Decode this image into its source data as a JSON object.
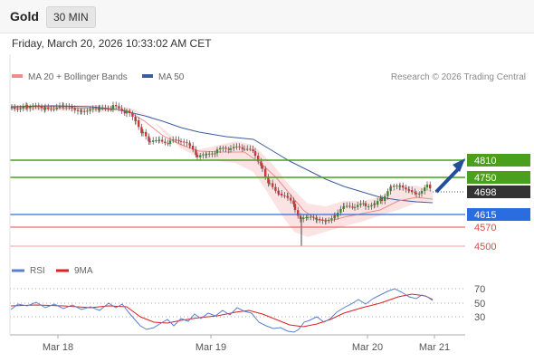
{
  "header": {
    "symbol": "Gold",
    "timeframe": "30 MIN"
  },
  "timestamp": "Friday, March 20, 2026 10:33:02 AM CET",
  "legend": {
    "ma20": {
      "label": "MA 20 + Bollinger Bands",
      "color": "#f08c8c"
    },
    "ma50": {
      "label": "MA 50",
      "color": "#3b5e9e"
    },
    "credit": "Research © 2026 Trading Central"
  },
  "price_levels": [
    {
      "value": 4810,
      "label": "4810",
      "kind": "resistance",
      "color": "#4aa01c"
    },
    {
      "value": 4750,
      "label": "4750",
      "kind": "resistance",
      "color": "#4aa01c"
    },
    {
      "value": 4698,
      "label": "4698",
      "kind": "last-price",
      "color": "#333333"
    },
    {
      "value": 4615,
      "label": "4615",
      "kind": "pivot",
      "color": "#2a6de0"
    },
    {
      "value": 4570,
      "label": "4570",
      "kind": "support",
      "color": "#e04848"
    },
    {
      "value": 4500,
      "label": "4500",
      "kind": "support",
      "color": "#e04848"
    }
  ],
  "rsi_legend": {
    "rsi": {
      "label": "RSI",
      "color": "#5b7fd0"
    },
    "ma": {
      "label": "9MA",
      "color": "#e02020"
    }
  },
  "rsi_levels": [
    "70",
    "50",
    "30"
  ],
  "x_axis": [
    "Mar 18",
    "Mar 19",
    "Mar 20",
    "Mar 21"
  ]
}
